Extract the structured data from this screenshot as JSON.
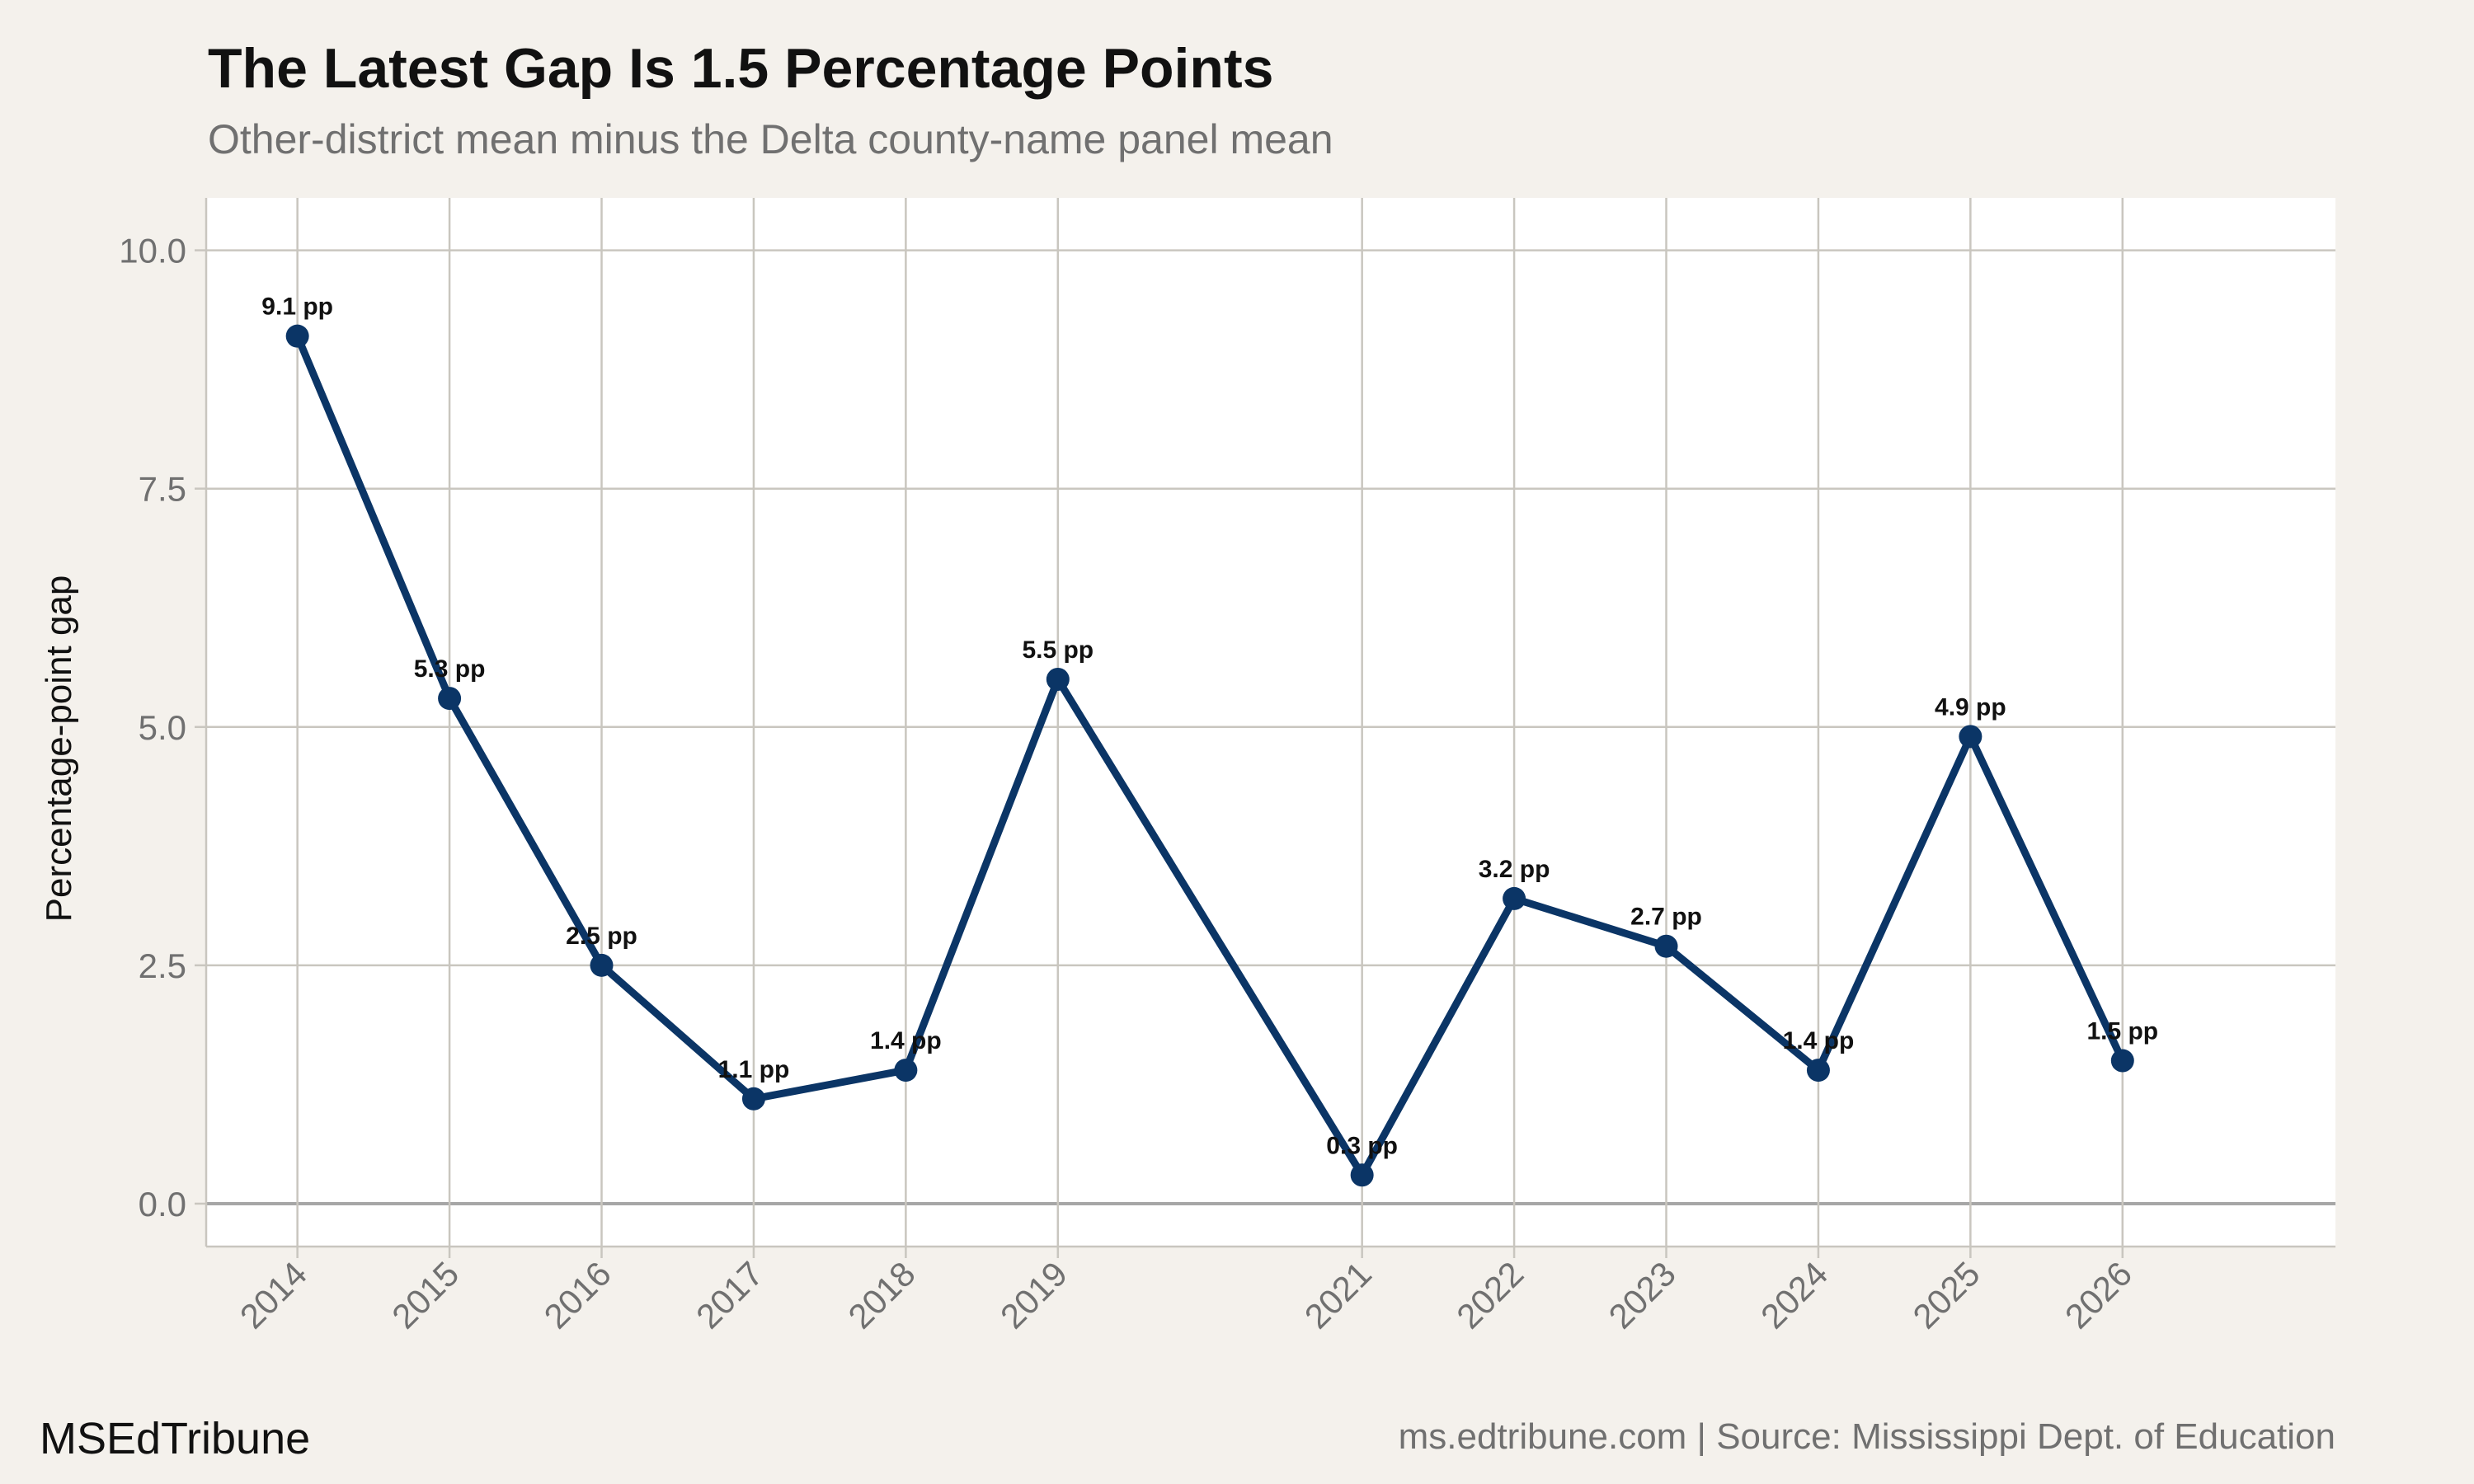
{
  "header": {
    "title": "The Latest Gap Is 1.5 Percentage Points",
    "subtitle": "Other-district mean minus the Delta county-name panel mean"
  },
  "footer": {
    "brand": "MSEdTribune",
    "credit": "ms.edtribune.com | Source: Mississippi Dept. of Education"
  },
  "colors": {
    "background": "#f4f1ec",
    "panel": "#ffffff",
    "line": "#0b3566",
    "grid": "#c9c6bf",
    "zero_line": "#a6a6a6"
  },
  "chart_data": {
    "type": "line",
    "title": "The Latest Gap Is 1.5 Percentage Points",
    "subtitle": "Other-district mean minus the Delta county-name panel mean",
    "xlabel": "",
    "ylabel": "Percentage-point gap",
    "x": [
      2014,
      2015,
      2016,
      2017,
      2018,
      2019,
      2021,
      2022,
      2023,
      2024,
      2025,
      2026
    ],
    "series": [
      {
        "values": [
          9.1,
          5.3,
          2.5,
          1.1,
          1.4,
          5.5,
          0.3,
          3.2,
          2.7,
          1.4,
          4.9,
          1.5
        ],
        "labels": [
          "9.1 pp",
          "5.3 pp",
          "2.5 pp",
          "1.1 pp",
          "1.4 pp",
          "5.5 pp",
          "0.3 pp",
          "3.2 pp",
          "2.7 pp",
          "1.4 pp",
          "4.9 pp",
          "1.5 pp"
        ]
      }
    ],
    "x_tick_labels": [
      "2014",
      "2015",
      "2016",
      "2017",
      "2018",
      "2019",
      "2021",
      "2022",
      "2023",
      "2024",
      "2025",
      "2026"
    ],
    "y_ticks": [
      0.0,
      2.5,
      5.0,
      7.5,
      10.0
    ],
    "y_tick_labels": [
      "0.0",
      "2.5",
      "5.0",
      "7.5",
      "10.0"
    ],
    "xlim": [
      2013.4,
      2027.4
    ],
    "ylim": [
      -0.45,
      10.55
    ],
    "grid": true,
    "legend": "none"
  }
}
